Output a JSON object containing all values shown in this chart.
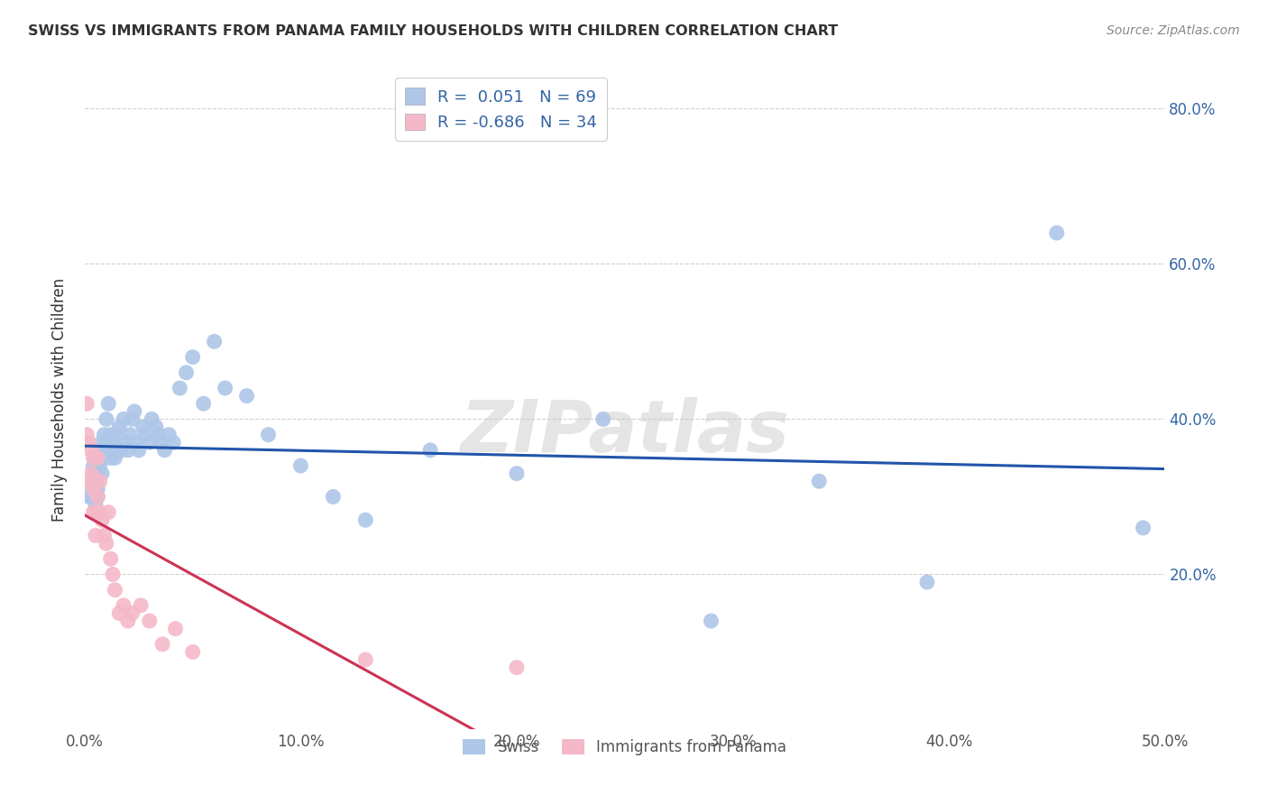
{
  "title": "SWISS VS IMMIGRANTS FROM PANAMA FAMILY HOUSEHOLDS WITH CHILDREN CORRELATION CHART",
  "source": "Source: ZipAtlas.com",
  "ylabel": "Family Households with Children",
  "xlim": [
    0.0,
    0.5
  ],
  "ylim": [
    0.0,
    0.85
  ],
  "xticks": [
    0.0,
    0.1,
    0.2,
    0.3,
    0.4,
    0.5
  ],
  "yticks": [
    0.2,
    0.4,
    0.6,
    0.8
  ],
  "ytick_labels": [
    "20.0%",
    "40.0%",
    "60.0%",
    "80.0%"
  ],
  "xtick_labels": [
    "0.0%",
    "10.0%",
    "20.0%",
    "30.0%",
    "40.0%",
    "50.0%"
  ],
  "grid_color": "#d0d0d0",
  "background_color": "#ffffff",
  "swiss_color": "#aec6e8",
  "panama_color": "#f4b8c8",
  "swiss_line_color": "#2255aa",
  "panama_line_color": "#cc3355",
  "swiss_R": 0.051,
  "swiss_N": 69,
  "panama_R": -0.686,
  "panama_N": 34,
  "watermark": "ZIPatlas",
  "swiss_x": [
    0.002,
    0.003,
    0.003,
    0.004,
    0.004,
    0.004,
    0.005,
    0.005,
    0.005,
    0.005,
    0.006,
    0.006,
    0.006,
    0.007,
    0.007,
    0.007,
    0.008,
    0.008,
    0.008,
    0.009,
    0.009,
    0.01,
    0.01,
    0.011,
    0.012,
    0.012,
    0.013,
    0.013,
    0.014,
    0.015,
    0.016,
    0.017,
    0.018,
    0.019,
    0.02,
    0.021,
    0.022,
    0.023,
    0.024,
    0.025,
    0.027,
    0.028,
    0.03,
    0.031,
    0.033,
    0.034,
    0.035,
    0.037,
    0.039,
    0.041,
    0.044,
    0.047,
    0.05,
    0.055,
    0.06,
    0.065,
    0.075,
    0.085,
    0.1,
    0.115,
    0.13,
    0.16,
    0.2,
    0.24,
    0.29,
    0.34,
    0.39,
    0.45,
    0.49
  ],
  "swiss_y": [
    0.3,
    0.31,
    0.3,
    0.34,
    0.3,
    0.32,
    0.35,
    0.31,
    0.3,
    0.29,
    0.31,
    0.33,
    0.3,
    0.35,
    0.36,
    0.34,
    0.37,
    0.33,
    0.35,
    0.36,
    0.38,
    0.4,
    0.37,
    0.42,
    0.38,
    0.35,
    0.37,
    0.36,
    0.35,
    0.38,
    0.39,
    0.36,
    0.4,
    0.37,
    0.36,
    0.38,
    0.4,
    0.41,
    0.37,
    0.36,
    0.39,
    0.38,
    0.37,
    0.4,
    0.39,
    0.38,
    0.37,
    0.36,
    0.38,
    0.37,
    0.44,
    0.46,
    0.48,
    0.42,
    0.5,
    0.44,
    0.43,
    0.38,
    0.34,
    0.3,
    0.27,
    0.36,
    0.33,
    0.4,
    0.14,
    0.32,
    0.19,
    0.64,
    0.26
  ],
  "panama_x": [
    0.001,
    0.001,
    0.002,
    0.002,
    0.003,
    0.003,
    0.004,
    0.004,
    0.004,
    0.005,
    0.005,
    0.005,
    0.006,
    0.006,
    0.007,
    0.007,
    0.008,
    0.009,
    0.01,
    0.011,
    0.012,
    0.013,
    0.014,
    0.016,
    0.018,
    0.02,
    0.022,
    0.026,
    0.03,
    0.036,
    0.042,
    0.05,
    0.13,
    0.2
  ],
  "panama_y": [
    0.42,
    0.38,
    0.37,
    0.32,
    0.36,
    0.33,
    0.35,
    0.31,
    0.28,
    0.32,
    0.28,
    0.25,
    0.35,
    0.3,
    0.32,
    0.28,
    0.27,
    0.25,
    0.24,
    0.28,
    0.22,
    0.2,
    0.18,
    0.15,
    0.16,
    0.14,
    0.15,
    0.16,
    0.14,
    0.11,
    0.13,
    0.1,
    0.09,
    0.08
  ]
}
